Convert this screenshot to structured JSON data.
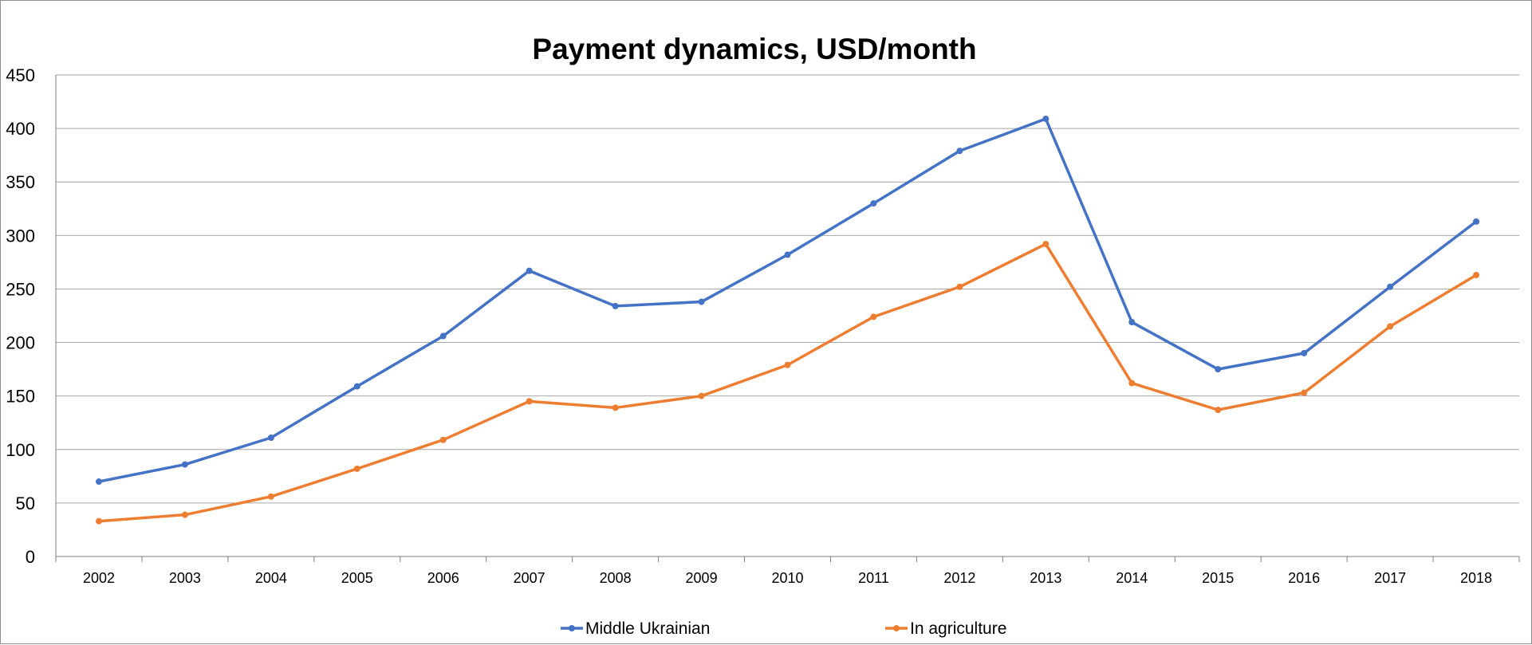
{
  "chart_data": {
    "type": "line",
    "title": "Payment dynamics, USD/month",
    "xlabel": "",
    "ylabel": "",
    "x": [
      "2002",
      "2003",
      "2004",
      "2005",
      "2006",
      "2007",
      "2008",
      "2009",
      "2010",
      "2011",
      "2012",
      "2013",
      "2014",
      "2015",
      "2016",
      "2017",
      "2018"
    ],
    "ylim": [
      0,
      450
    ],
    "yticks": [
      0,
      50,
      100,
      150,
      200,
      250,
      300,
      350,
      400,
      450
    ],
    "grid": "horizontal",
    "legend_position": "bottom",
    "series": [
      {
        "name": "Middle Ukrainian",
        "color": "#4472C4",
        "values": [
          70,
          86,
          111,
          159,
          206,
          267,
          234,
          238,
          282,
          330,
          379,
          409,
          219,
          175,
          190,
          252,
          313
        ]
      },
      {
        "name": "In agriculture",
        "color": "#ED7D31",
        "values": [
          33,
          39,
          56,
          82,
          109,
          145,
          139,
          150,
          179,
          224,
          252,
          292,
          162,
          137,
          153,
          215,
          263
        ]
      }
    ]
  }
}
